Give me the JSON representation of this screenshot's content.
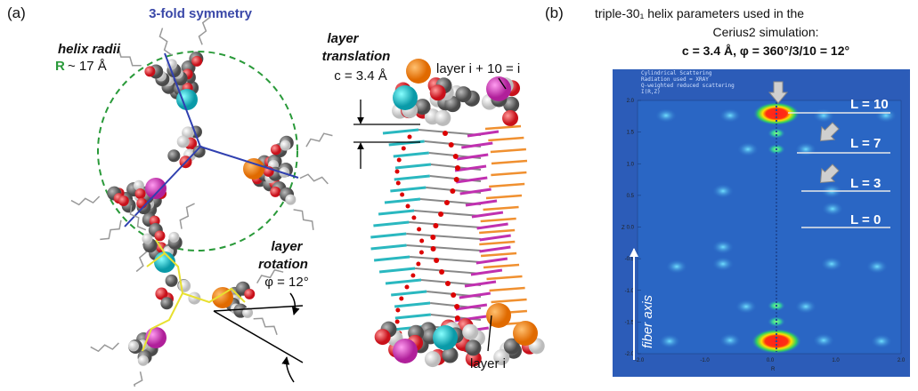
{
  "panel_a": {
    "label": "(a)",
    "symmetry": "3-fold symmetry",
    "helix_radii": "helix radii",
    "radius_symbol": "R",
    "radius_value": "~ 17 Å",
    "translation_title_1": "layer",
    "translation_title_2": "translation",
    "translation_value": "c = 3.4 Å",
    "layer_top": "layer i + 10 = i",
    "rotation_title_1": "layer",
    "rotation_title_2": "rotation",
    "rotation_value": "φ = 12°",
    "layer_bottom": "layer i"
  },
  "panel_b": {
    "label": "(b)",
    "title_1": "triple-30₁ helix  parameters used in the",
    "title_2": "Cerius2 simulation:",
    "title_3": "c = 3.4 Å, φ = 360°/3/10 = 12°",
    "plot_header": [
      "Cylindrical Scattering",
      "Radiation used = XRAY",
      "Q-weighted reduced scattering",
      "I(R,Z)"
    ],
    "layer_lines": [
      "L = 10",
      "L = 7",
      "L = 3",
      "L = 0"
    ],
    "fiber_axis": "fiber axis",
    "y_ticks": [
      "2.0",
      "1.5",
      "1.0",
      "0.5",
      "0.0",
      "-0.5",
      "-1.0",
      "-1.5",
      "-2.0"
    ],
    "x_ticks": [
      "-2.0",
      "-1.0",
      "0.0",
      "1.0",
      "2.0"
    ],
    "y_axis_label": "Z",
    "x_axis_label": "R"
  }
}
